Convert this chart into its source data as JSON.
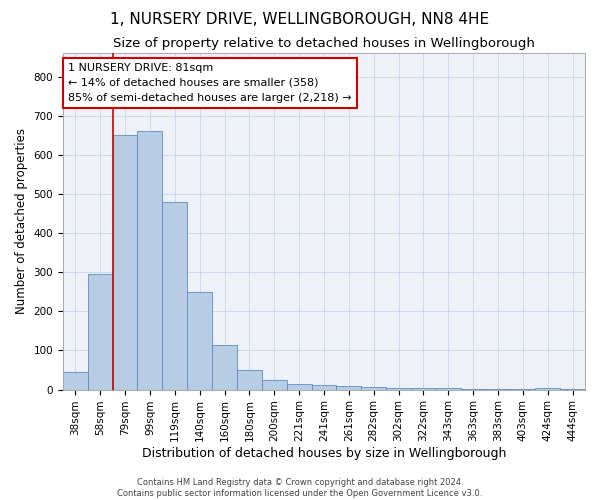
{
  "title": "1, NURSERY DRIVE, WELLINGBOROUGH, NN8 4HE",
  "subtitle": "Size of property relative to detached houses in Wellingborough",
  "xlabel": "Distribution of detached houses by size in Wellingborough",
  "ylabel": "Number of detached properties",
  "categories": [
    "38sqm",
    "58sqm",
    "79sqm",
    "99sqm",
    "119sqm",
    "140sqm",
    "160sqm",
    "180sqm",
    "200sqm",
    "221sqm",
    "241sqm",
    "261sqm",
    "282sqm",
    "302sqm",
    "322sqm",
    "343sqm",
    "363sqm",
    "383sqm",
    "403sqm",
    "424sqm",
    "444sqm"
  ],
  "values": [
    45,
    295,
    650,
    660,
    480,
    250,
    115,
    50,
    25,
    15,
    12,
    10,
    7,
    5,
    4,
    3,
    2,
    2,
    1,
    5,
    1
  ],
  "bar_color": "#b8cce4",
  "bar_edge_color": "#5b8cc8",
  "vline_x_index": 2,
  "vline_color": "#cc0000",
  "annotation_line1": "1 NURSERY DRIVE: 81sqm",
  "annotation_line2": "← 14% of detached houses are smaller (358)",
  "annotation_line3": "85% of semi-detached houses are larger (2,218) →",
  "annotation_box_color": "white",
  "annotation_box_edge": "#cc0000",
  "ylim": [
    0,
    860
  ],
  "yticks": [
    0,
    100,
    200,
    300,
    400,
    500,
    600,
    700,
    800
  ],
  "footer1": "Contains HM Land Registry data © Crown copyright and database right 2024.",
  "footer2": "Contains public sector information licensed under the Open Government Licence v3.0.",
  "title_fontsize": 11,
  "subtitle_fontsize": 9.5,
  "xlabel_fontsize": 9,
  "ylabel_fontsize": 8.5,
  "tick_fontsize": 7.5,
  "annotation_fontsize": 8,
  "footer_fontsize": 6,
  "bg_color": "#eef2f8",
  "grid_color": "#c5d5e8"
}
